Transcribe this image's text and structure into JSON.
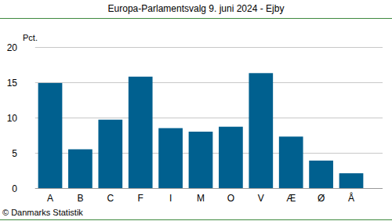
{
  "chart_data": {
    "type": "bar",
    "title": "Europa-Parlamentsvalg 9. juni 2024 - Ejby",
    "y_label": "Pct.",
    "source": "© Danmarks Statistik",
    "categories": [
      "A",
      "B",
      "C",
      "F",
      "I",
      "M",
      "O",
      "V",
      "Æ",
      "Ø",
      "Å"
    ],
    "values": [
      14.9,
      5.5,
      9.7,
      15.8,
      8.5,
      8.0,
      8.7,
      16.3,
      7.3,
      3.9,
      2.1
    ],
    "color": "#00608f",
    "ylim": [
      0,
      20
    ],
    "yticks": [
      0,
      5,
      10,
      15,
      20
    ],
    "grid": true
  }
}
